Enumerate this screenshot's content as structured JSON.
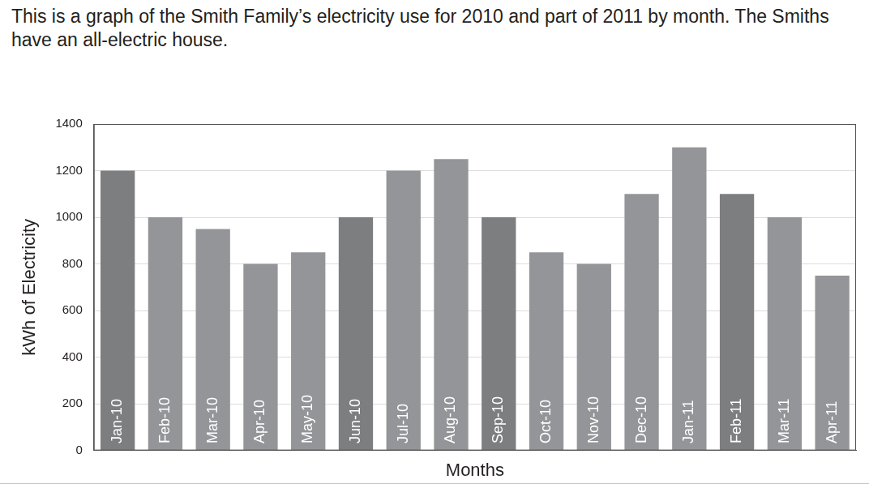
{
  "chart_data": {
    "type": "bar",
    "title": "This is a graph of the Smith Family’s electricity use for 2010 and part of 2011 by month. The Smiths have an all-electric house.",
    "x_label": "Months",
    "y_label": "kWh of Electricity",
    "categories": [
      "Jan-10",
      "Feb-10",
      "Mar-10",
      "Apr-10",
      "May-10",
      "Jun-10",
      "Jul-10",
      "Aug-10",
      "Sep-10",
      "Oct-10",
      "Nov-10",
      "Dec-10",
      "Jan-11",
      "Feb-11",
      "Mar-11",
      "Apr-11"
    ],
    "values": [
      1200,
      1000,
      950,
      800,
      850,
      1000,
      1200,
      1250,
      1000,
      850,
      800,
      1100,
      1300,
      1100,
      1000,
      750
    ],
    "colors": [
      "#7d7e80",
      "#939598",
      "#939598",
      "#939598",
      "#939598",
      "#7d7e80",
      "#939598",
      "#939598",
      "#7d7e80",
      "#939598",
      "#939598",
      "#939598",
      "#939598",
      "#7d7e80",
      "#939598",
      "#939598"
    ],
    "ylim": [
      0,
      1400
    ],
    "yticks": [
      0,
      200,
      400,
      600,
      800,
      1000,
      1200,
      1400
    ],
    "grid": true
  }
}
